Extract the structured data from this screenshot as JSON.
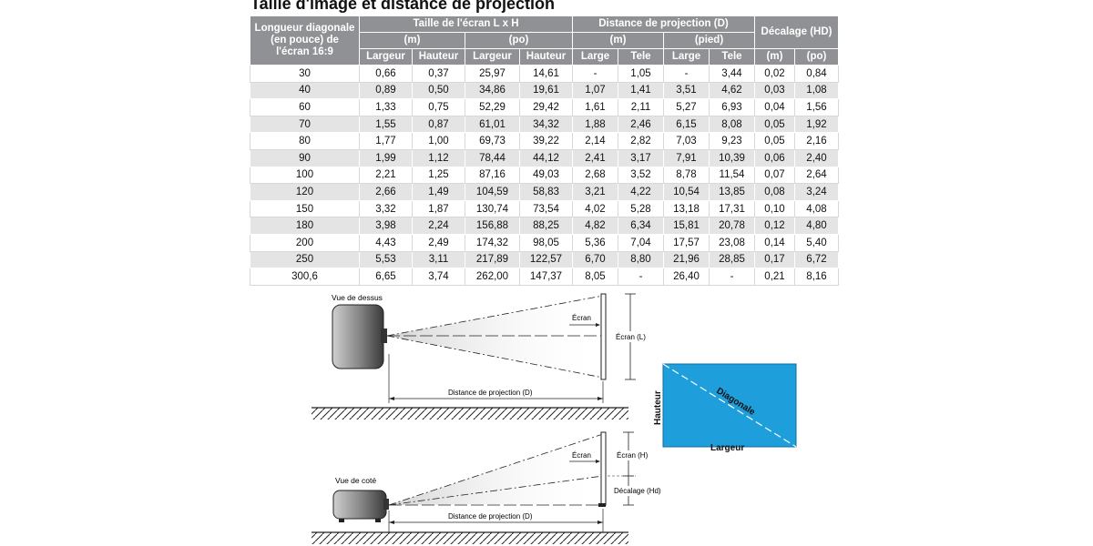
{
  "title": "Taille d'image et distance de projection",
  "header": {
    "diag": "Longueur diagonale (en pouce) de l'écran 16:9",
    "screen_size": "Taille de l'écran L x H",
    "throw": "Distance de projection (D)",
    "offset": "Décalage (HD)",
    "m": "(m)",
    "po": "(po)",
    "pied": "(pied)",
    "largeur": "Largeur",
    "hauteur": "Hauteur",
    "large": "Large",
    "tele": "Tele"
  },
  "rows": [
    [
      "30",
      "0,66",
      "0,37",
      "25,97",
      "14,61",
      "-",
      "1,05",
      "-",
      "3,44",
      "0,02",
      "0,84"
    ],
    [
      "40",
      "0,89",
      "0,50",
      "34,86",
      "19,61",
      "1,07",
      "1,41",
      "3,51",
      "4,62",
      "0,03",
      "1,08"
    ],
    [
      "60",
      "1,33",
      "0,75",
      "52,29",
      "29,42",
      "1,61",
      "2,11",
      "5,27",
      "6,93",
      "0,04",
      "1,56"
    ],
    [
      "70",
      "1,55",
      "0,87",
      "61,01",
      "34,32",
      "1,88",
      "2,46",
      "6,15",
      "8,08",
      "0,05",
      "1,92"
    ],
    [
      "80",
      "1,77",
      "1,00",
      "69,73",
      "39,22",
      "2,14",
      "2,82",
      "7,03",
      "9,23",
      "0,05",
      "2,16"
    ],
    [
      "90",
      "1,99",
      "1,12",
      "78,44",
      "44,12",
      "2,41",
      "3,17",
      "7,91",
      "10,39",
      "0,06",
      "2,40"
    ],
    [
      "100",
      "2,21",
      "1,25",
      "87,16",
      "49,03",
      "2,68",
      "3,52",
      "8,78",
      "11,54",
      "0,07",
      "2,64"
    ],
    [
      "120",
      "2,66",
      "1,49",
      "104,59",
      "58,83",
      "3,21",
      "4,22",
      "10,54",
      "13,85",
      "0,08",
      "3,24"
    ],
    [
      "150",
      "3,32",
      "1,87",
      "130,74",
      "73,54",
      "4,02",
      "5,28",
      "13,18",
      "17,31",
      "0,10",
      "4,08"
    ],
    [
      "180",
      "3,98",
      "2,24",
      "156,88",
      "88,25",
      "4,82",
      "6,34",
      "15,81",
      "20,78",
      "0,12",
      "4,80"
    ],
    [
      "200",
      "4,43",
      "2,49",
      "174,32",
      "98,05",
      "5,36",
      "7,04",
      "17,57",
      "23,08",
      "0,14",
      "5,40"
    ],
    [
      "250",
      "5,53",
      "3,11",
      "217,89",
      "122,57",
      "6,70",
      "8,80",
      "21,96",
      "28,85",
      "0,17",
      "6,72"
    ],
    [
      "300,6",
      "6,65",
      "3,74",
      "262,00",
      "147,37",
      "8,05",
      "-",
      "26,40",
      "-",
      "0,21",
      "8,16"
    ]
  ],
  "diagram": {
    "top_view": "Vue de dessus",
    "side_view": "Vue de coté",
    "screen": "Écran",
    "screen_l": "Écran (L)",
    "screen_h": "Écran (H)",
    "offset_hd": "Décalage (Hd)",
    "distance": "Distance de projection (D)",
    "hauteur": "Hauteur",
    "diagonale": "Diagonale",
    "largeur": "Largeur"
  },
  "colors": {
    "header_bg": "#8f9194",
    "row_alt": "#e4e4e4",
    "screen_blue": "#1e9fdc"
  }
}
